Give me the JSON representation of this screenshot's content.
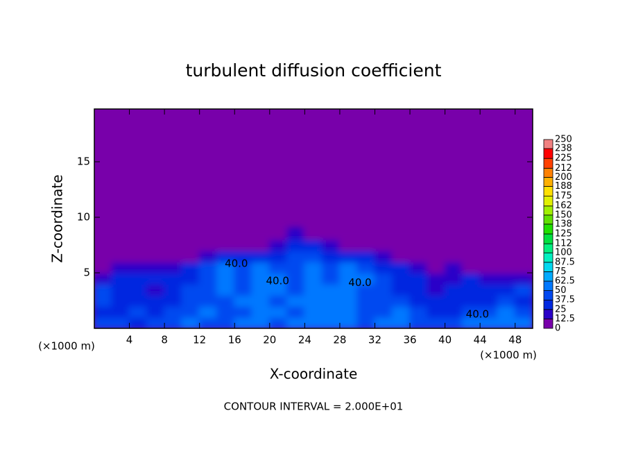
{
  "chart_data": {
    "type": "heatmap",
    "title": "turbulent diffusion coefficient",
    "x_label": "X-coordinate",
    "y_label": "Z-coordinate",
    "x_unit": "(×1000 m)",
    "y_unit": "(×1000 m)",
    "footer": "CONTOUR INTERVAL = 2.000E+01",
    "xlim": [
      0,
      50
    ],
    "ylim": [
      0,
      19.75
    ],
    "xticks": [
      4,
      8,
      12,
      16,
      20,
      24,
      28,
      32,
      36,
      40,
      44,
      48
    ],
    "yticks": [
      5,
      10,
      15
    ],
    "x": [
      1,
      3,
      5,
      7,
      9,
      11,
      13,
      15,
      17,
      19,
      21,
      23,
      25,
      27,
      29,
      31,
      33,
      35,
      37,
      39,
      41,
      43,
      45,
      47,
      49
    ],
    "z": [
      0.5,
      1.5,
      2.5,
      3.5,
      4.5,
      5.5,
      6.5,
      7.5,
      8.5
    ],
    "values": [
      [
        40,
        45,
        35,
        40,
        45,
        50,
        45,
        40,
        50,
        55,
        45,
        50,
        55,
        60,
        50,
        45,
        50,
        55,
        45,
        40,
        45,
        50,
        55,
        60,
        50
      ],
      [
        35,
        30,
        40,
        30,
        40,
        45,
        50,
        40,
        45,
        50,
        55,
        45,
        60,
        55,
        50,
        45,
        40,
        50,
        40,
        30,
        35,
        40,
        45,
        50,
        40
      ],
      [
        40,
        30,
        35,
        25,
        35,
        40,
        45,
        45,
        50,
        55,
        45,
        50,
        55,
        60,
        50,
        40,
        45,
        40,
        30,
        25,
        30,
        35,
        30,
        40,
        35
      ],
      [
        45,
        35,
        30,
        20,
        30,
        40,
        45,
        50,
        45,
        55,
        50,
        45,
        60,
        50,
        55,
        45,
        40,
        35,
        25,
        20,
        30,
        25,
        30,
        35,
        40
      ],
      [
        20,
        25,
        30,
        25,
        25,
        35,
        40,
        50,
        45,
        50,
        55,
        40,
        55,
        45,
        50,
        50,
        45,
        35,
        25,
        15,
        20,
        25,
        20,
        15,
        20
      ],
      [
        10,
        15,
        20,
        15,
        15,
        30,
        40,
        50,
        45,
        50,
        45,
        45,
        55,
        45,
        50,
        45,
        35,
        25,
        15,
        10,
        15,
        10,
        10,
        5,
        10
      ],
      [
        0,
        5,
        10,
        5,
        5,
        10,
        20,
        30,
        25,
        35,
        30,
        40,
        40,
        35,
        30,
        25,
        15,
        10,
        5,
        0,
        5,
        5,
        0,
        0,
        0
      ],
      [
        0,
        0,
        0,
        0,
        0,
        0,
        5,
        5,
        10,
        10,
        15,
        25,
        25,
        20,
        10,
        10,
        5,
        0,
        0,
        0,
        0,
        0,
        0,
        0,
        0
      ],
      [
        0,
        0,
        0,
        0,
        0,
        0,
        0,
        0,
        0,
        5,
        10,
        15,
        10,
        5,
        0,
        0,
        0,
        0,
        0,
        0,
        0,
        0,
        0,
        0,
        0
      ]
    ],
    "contour_labels": [
      {
        "label": "40.0",
        "x": 16.2,
        "z": 5.8
      },
      {
        "label": "40.0",
        "x": 20.9,
        "z": 4.25
      },
      {
        "label": "40.0",
        "x": 30.3,
        "z": 4.1
      },
      {
        "label": "40.0",
        "x": 43.7,
        "z": 1.25
      }
    ],
    "colorbar": {
      "levels": [
        0,
        12.5,
        25,
        37.5,
        50,
        62.5,
        75,
        87.5,
        100,
        112,
        125,
        138,
        150,
        162,
        175,
        188,
        200,
        212,
        225,
        238,
        250
      ],
      "colors": [
        "#7800aa",
        "#2a00c8",
        "#0028e0",
        "#0048f0",
        "#0078ff",
        "#00aaff",
        "#00d8f0",
        "#00f0c0",
        "#00f080",
        "#00e040",
        "#20e000",
        "#60e000",
        "#a0f000",
        "#e0f000",
        "#ffe000",
        "#ffb000",
        "#ff8000",
        "#ff4000",
        "#ff0000",
        "#f08080"
      ]
    }
  }
}
